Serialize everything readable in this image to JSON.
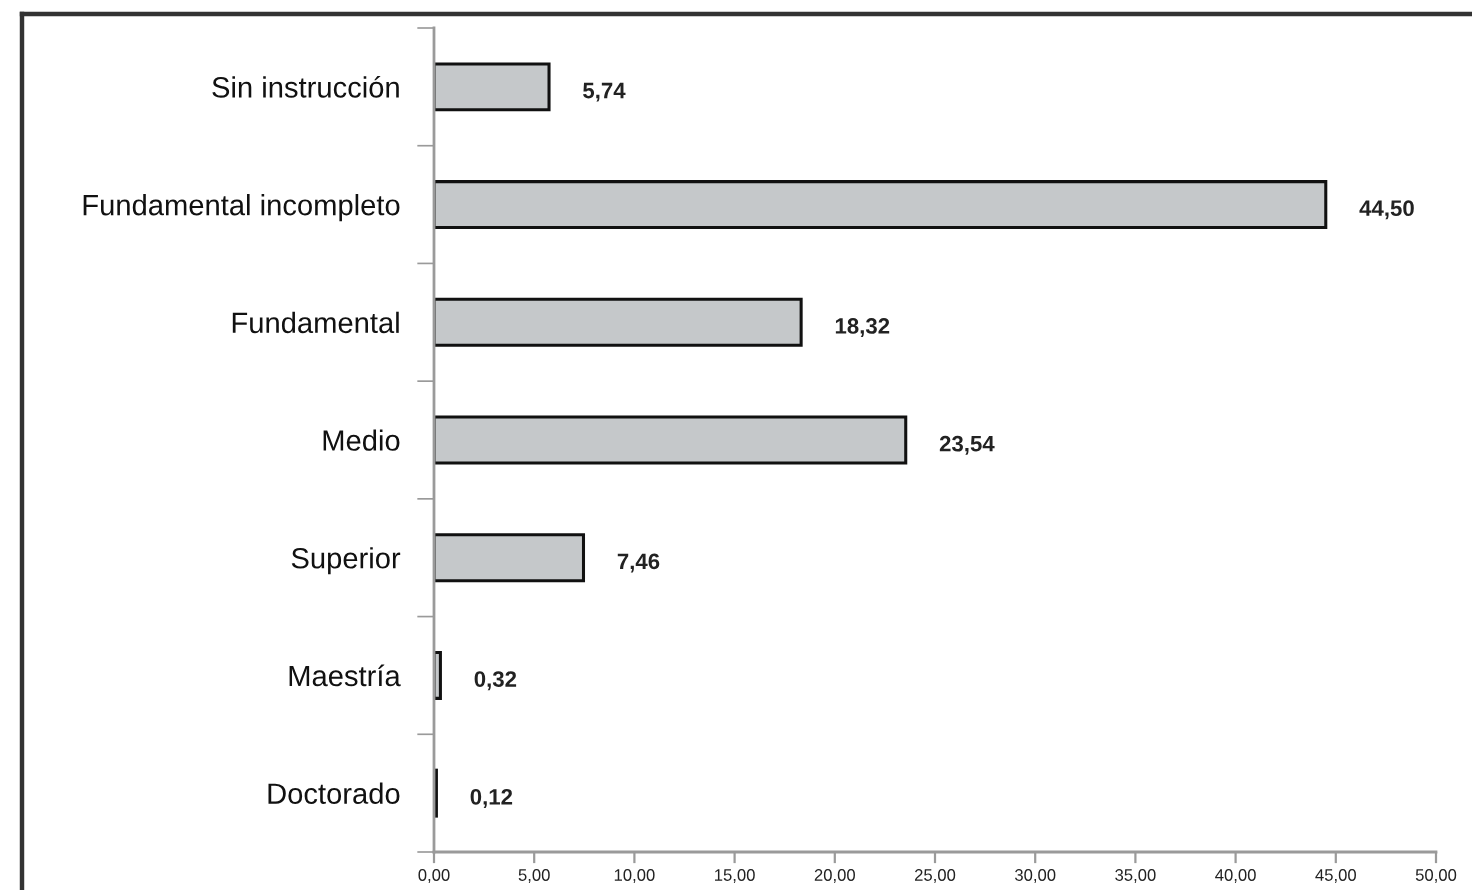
{
  "chart_data": {
    "type": "bar",
    "orientation": "horizontal",
    "categories": [
      "Sin instrucción",
      "Fundamental incompleto",
      "Fundamental",
      "Medio",
      "Superior",
      "Maestría",
      "Doctorado"
    ],
    "values": [
      5.74,
      44.5,
      18.32,
      23.54,
      7.46,
      0.32,
      0.12
    ],
    "colors": [
      "#c5c8ca",
      "#c5c8ca",
      "#c5c8ca",
      "#c5c8ca",
      "#c5c8ca",
      "#c5c8ca",
      "#c5c8ca"
    ],
    "value_labels": [
      "5,74",
      "44,50",
      "18,32",
      "23,54",
      "7,46",
      "0,32",
      "0,12"
    ],
    "xlim": [
      0,
      50
    ],
    "xticks": [
      {
        "value": 0,
        "label": "0,00"
      },
      {
        "value": 5,
        "label": "5,00"
      },
      {
        "value": 10,
        "label": "10,00"
      },
      {
        "value": 15,
        "label": "15,00"
      },
      {
        "value": 20,
        "label": "20,00"
      },
      {
        "value": 25,
        "label": "25,00"
      },
      {
        "value": 30,
        "label": "30,00"
      },
      {
        "value": 35,
        "label": "35,00"
      },
      {
        "value": 40,
        "label": "40,00"
      },
      {
        "value": 45,
        "label": "45,00"
      },
      {
        "value": 50,
        "label": "50,00"
      }
    ],
    "grid": false
  }
}
